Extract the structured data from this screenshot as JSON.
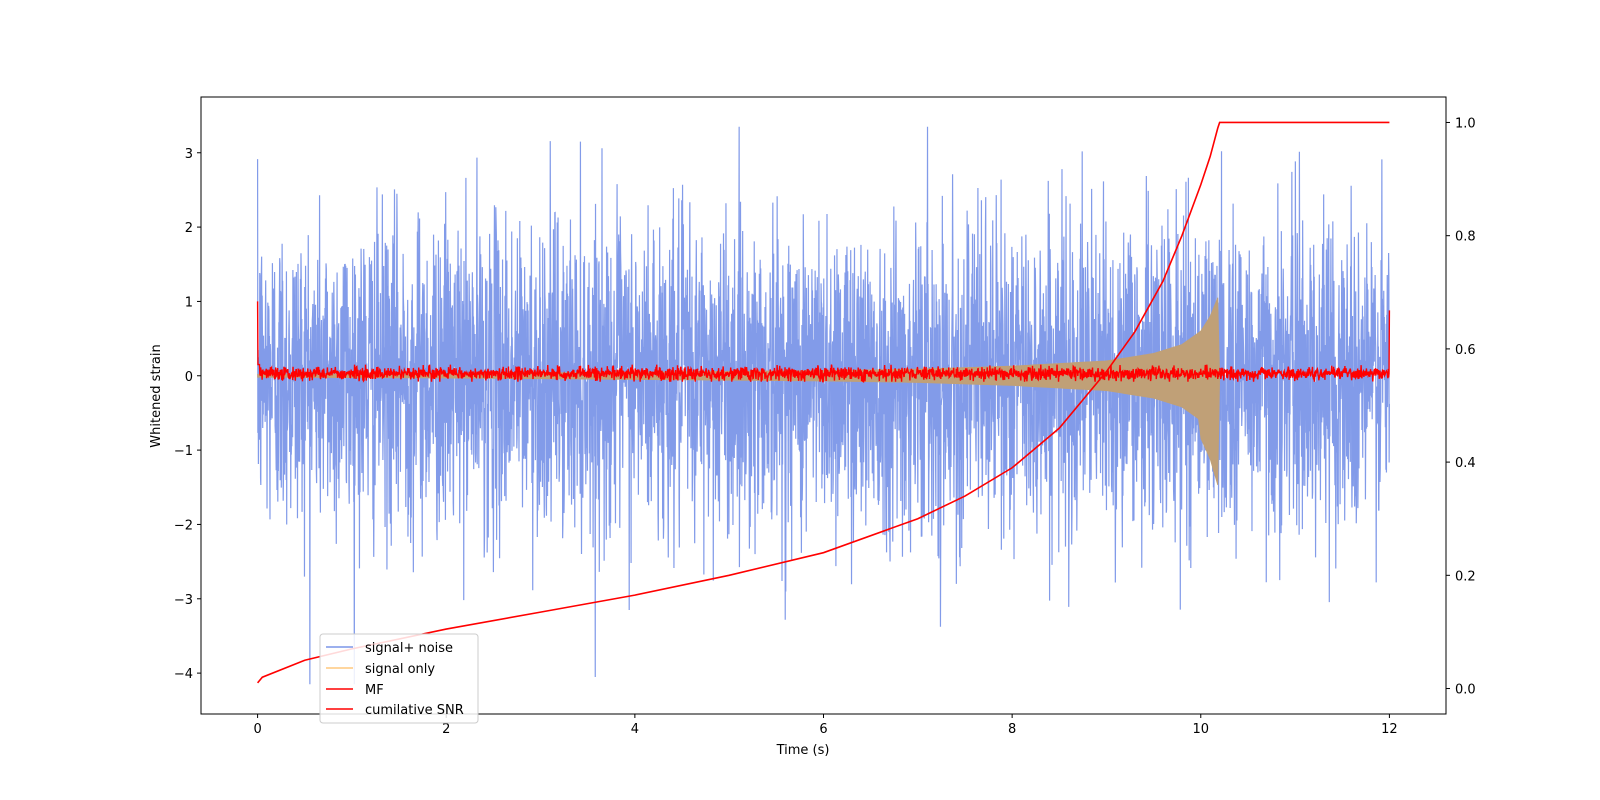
{
  "chart_data": {
    "type": "line",
    "xlabel": "Time (s)",
    "ylabel": "Whitened strain",
    "xlim": [
      -0.6,
      12.6
    ],
    "ylim": [
      -4.55,
      3.75
    ],
    "y2lim": [
      -0.045,
      1.045
    ],
    "x_ticks": [
      0,
      2,
      4,
      6,
      8,
      10,
      12
    ],
    "x_tick_labels": [
      "0",
      "2",
      "4",
      "6",
      "8",
      "10",
      "12"
    ],
    "y_ticks": [
      3,
      2,
      1,
      0,
      -1,
      -2,
      -3,
      -4
    ],
    "y_tick_labels": [
      "3",
      "2",
      "1",
      "0",
      "−1",
      "−2",
      "−3",
      "−4"
    ],
    "y2_ticks": [
      1.0,
      0.8,
      0.6,
      0.4,
      0.2,
      0.0
    ],
    "y2_tick_labels": [
      "1.0",
      "0.8",
      "0.6",
      "0.4",
      "0.2",
      "0.0"
    ],
    "grid": false,
    "legend_position": "lower-left",
    "series": [
      {
        "name": "signal+ noise",
        "color": "#7b96e8",
        "axis": "left",
        "description_values": {
          "t_start": 0,
          "t_end": 12,
          "typical_range": [
            -2.5,
            2.5
          ],
          "max": 3.35,
          "min": -4.15
        }
      },
      {
        "name": "signal only",
        "color": "#c0a077",
        "axis": "left",
        "envelope": {
          "t": [
            0,
            2,
            4,
            6,
            7,
            8,
            9,
            9.5,
            9.8,
            10,
            10.1,
            10.18
          ],
          "amplitude": [
            0.02,
            0.03,
            0.05,
            0.07,
            0.09,
            0.13,
            0.2,
            0.3,
            0.42,
            0.6,
            0.8,
            1.05
          ],
          "chirp_end": 10.2
        }
      },
      {
        "name": "MF",
        "color": "#ff0000",
        "axis": "left",
        "edges": {
          "t0": 0,
          "v0": 1.0,
          "t_end": 12,
          "v_end": 0.88
        },
        "typical_range": [
          -0.08,
          0.15
        ]
      },
      {
        "name": "cumilative SNR",
        "color": "#ff0000",
        "axis": "right",
        "x": [
          0,
          0.05,
          0.5,
          1,
          2,
          3,
          4,
          5,
          6,
          7,
          7.5,
          8,
          8.5,
          9,
          9.3,
          9.6,
          9.8,
          10,
          10.1,
          10.18,
          10.2,
          12
        ],
        "y": [
          0.01,
          0.02,
          0.05,
          0.07,
          0.105,
          0.135,
          0.165,
          0.2,
          0.24,
          0.3,
          0.34,
          0.39,
          0.46,
          0.56,
          0.63,
          0.72,
          0.8,
          0.89,
          0.94,
          0.99,
          1.0,
          1.0
        ]
      }
    ]
  }
}
